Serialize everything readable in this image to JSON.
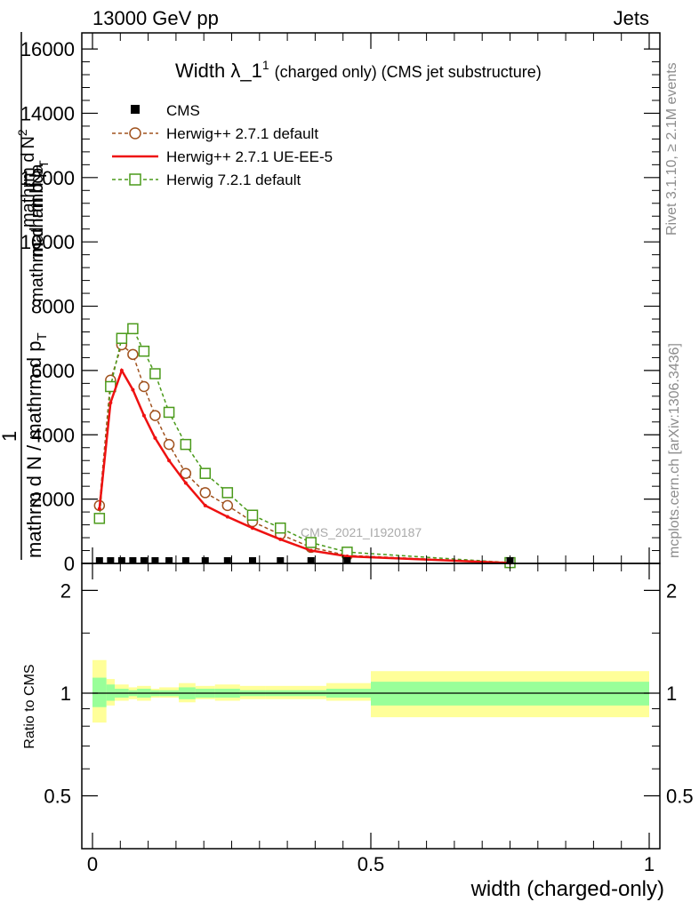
{
  "header": {
    "left": "13000 GeV pp",
    "right": "Jets"
  },
  "side": {
    "rivet": "Rivet 3.1.10, ≥ 2.1M events",
    "mcplots": "mcplots.cern.ch [arXiv:1306.3436]"
  },
  "colors": {
    "cms": "#000000",
    "herwig_default": "#a0521e",
    "herwig_ueee5": "#ee1111",
    "herwig7": "#4a9a1a",
    "band_inner": "#99ff99",
    "band_outer": "#ffff99"
  },
  "chart_data": [
    {
      "type": "line",
      "title": "Width λ_1¹ (charged only) (CMS jet substructure)",
      "title_main": "Width λ_1",
      "title_sup": "1",
      "title_rest": "(charged only) (CMS jet substructure)",
      "ylabel": "1 / mathrm d N / mathrm d p_T mathrm d²N / mathrm d p_T mathrm d lambda",
      "ylabel_parts": {
        "one": "1",
        "denom": "mathrm d N / mathrm d p",
        "t": "T",
        "numer1": "mathrm d",
        "numer2": "N",
        "numer_sup": "2",
        "numer3": "mathrm d p",
        "numer_t": "T",
        "numer4": "mathrm d lambda"
      },
      "watermark": "CMS_2021_I1920187",
      "xlim": [
        0,
        1
      ],
      "ylim": [
        0,
        16500
      ],
      "yticks": [
        0,
        2000,
        4000,
        6000,
        8000,
        10000,
        12000,
        14000,
        16000
      ],
      "yticklabels": [
        "0",
        "2000",
        "4000",
        "6000",
        "8000",
        "10000",
        "12000",
        "14000",
        "16000"
      ],
      "legend_position": "top-left",
      "series": [
        {
          "name": "CMS",
          "style": "points",
          "marker": "filled-square",
          "x": [
            0.0125,
            0.0325,
            0.0525,
            0.0725,
            0.0925,
            0.1125,
            0.1375,
            0.1675,
            0.2025,
            0.2425,
            0.2875,
            0.3375,
            0.3925,
            0.4575,
            0.75
          ],
          "y": [
            0,
            0,
            0,
            0,
            0,
            0,
            0,
            0,
            0,
            0,
            0,
            0,
            0,
            0,
            0
          ]
        },
        {
          "name": "Herwig++ 2.7.1 default",
          "style": "dashed",
          "marker": "open-circle",
          "x": [
            0.0125,
            0.0325,
            0.0525,
            0.0725,
            0.0925,
            0.1125,
            0.1375,
            0.1675,
            0.2025,
            0.2425,
            0.2875,
            0.3375,
            0.3925,
            0.4575,
            0.75
          ],
          "y": [
            1800,
            5700,
            6800,
            6500,
            5500,
            4600,
            3700,
            2800,
            2200,
            1800,
            1300,
            900,
            500,
            250,
            20
          ]
        },
        {
          "name": "Herwig++ 2.7.1 UE-EE-5",
          "style": "solid",
          "marker": "none",
          "x": [
            0.0125,
            0.0325,
            0.0525,
            0.0725,
            0.0925,
            0.1125,
            0.1375,
            0.1675,
            0.2025,
            0.2425,
            0.2875,
            0.3375,
            0.3925,
            0.4575,
            0.75
          ],
          "y": [
            1700,
            5000,
            6000,
            5400,
            4600,
            3900,
            3200,
            2500,
            1800,
            1450,
            1100,
            750,
            400,
            220,
            15
          ]
        },
        {
          "name": "Herwig 7.2.1 default",
          "style": "dashed",
          "marker": "open-square",
          "x": [
            0.0125,
            0.0325,
            0.0525,
            0.0725,
            0.0925,
            0.1125,
            0.1375,
            0.1675,
            0.2025,
            0.2425,
            0.2875,
            0.3375,
            0.3925,
            0.4575,
            0.75
          ],
          "y": [
            1400,
            5500,
            7000,
            7300,
            6600,
            5900,
            4700,
            3700,
            2800,
            2200,
            1500,
            1100,
            650,
            350,
            25
          ]
        }
      ]
    },
    {
      "type": "area",
      "ylabel": "Ratio to CMS",
      "xlabel": "width (charged-only)",
      "xlim": [
        0,
        1
      ],
      "ylim": [
        0.35,
        2.4
      ],
      "log_y": true,
      "xticks": [
        0,
        0.5,
        1
      ],
      "xticklabels": [
        "0",
        "0.5",
        "1"
      ],
      "yticks": [
        0.5,
        1,
        2
      ],
      "yticklabels": [
        "0.5",
        "1",
        "2"
      ],
      "reference_line": 1,
      "bands": [
        {
          "xlo": 0.0,
          "xhi": 0.025,
          "inner": [
            0.91,
            1.11
          ],
          "outer": [
            0.82,
            1.25
          ]
        },
        {
          "xlo": 0.025,
          "xhi": 0.04,
          "inner": [
            0.95,
            1.06
          ],
          "outer": [
            0.92,
            1.1
          ]
        },
        {
          "xlo": 0.04,
          "xhi": 0.065,
          "inner": [
            0.97,
            1.03
          ],
          "outer": [
            0.95,
            1.06
          ]
        },
        {
          "xlo": 0.065,
          "xhi": 0.08,
          "inner": [
            0.98,
            1.02
          ],
          "outer": [
            0.96,
            1.04
          ]
        },
        {
          "xlo": 0.08,
          "xhi": 0.105,
          "inner": [
            0.97,
            1.03
          ],
          "outer": [
            0.95,
            1.05
          ]
        },
        {
          "xlo": 0.105,
          "xhi": 0.12,
          "inner": [
            0.98,
            1.02
          ],
          "outer": [
            0.97,
            1.03
          ]
        },
        {
          "xlo": 0.12,
          "xhi": 0.155,
          "inner": [
            0.98,
            1.02
          ],
          "outer": [
            0.97,
            1.04
          ]
        },
        {
          "xlo": 0.155,
          "xhi": 0.185,
          "inner": [
            0.96,
            1.04
          ],
          "outer": [
            0.94,
            1.07
          ]
        },
        {
          "xlo": 0.185,
          "xhi": 0.22,
          "inner": [
            0.97,
            1.03
          ],
          "outer": [
            0.96,
            1.05
          ]
        },
        {
          "xlo": 0.22,
          "xhi": 0.265,
          "inner": [
            0.97,
            1.03
          ],
          "outer": [
            0.95,
            1.06
          ]
        },
        {
          "xlo": 0.265,
          "xhi": 0.31,
          "inner": [
            0.98,
            1.02
          ],
          "outer": [
            0.96,
            1.05
          ]
        },
        {
          "xlo": 0.31,
          "xhi": 0.365,
          "inner": [
            0.98,
            1.02
          ],
          "outer": [
            0.96,
            1.05
          ]
        },
        {
          "xlo": 0.365,
          "xhi": 0.42,
          "inner": [
            0.98,
            1.02
          ],
          "outer": [
            0.96,
            1.05
          ]
        },
        {
          "xlo": 0.42,
          "xhi": 0.5,
          "inner": [
            0.97,
            1.03
          ],
          "outer": [
            0.95,
            1.07
          ]
        },
        {
          "xlo": 0.5,
          "xhi": 1.0,
          "inner": [
            0.92,
            1.08
          ],
          "outer": [
            0.85,
            1.16
          ]
        }
      ]
    }
  ]
}
